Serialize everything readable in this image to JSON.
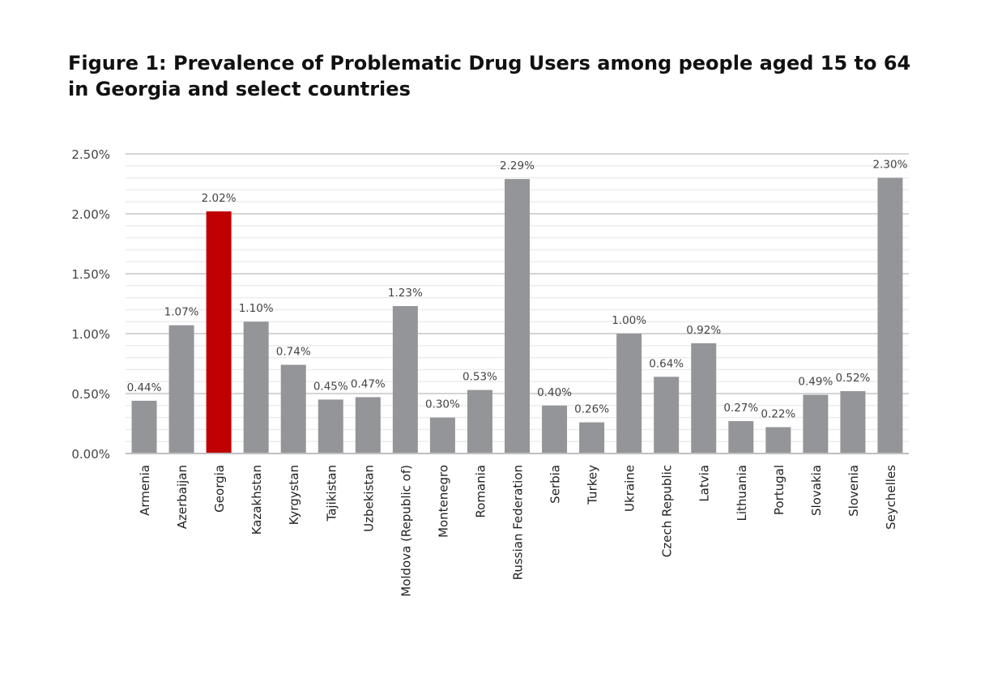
{
  "chart_data": {
    "type": "bar",
    "title_line1": "Figure 1: Prevalence of Problematic Drug Users among people aged 15 to 64",
    "title_line2": "in Georgia and select countries",
    "categories": [
      "Armenia",
      "Azerbaijan",
      "Georgia",
      "Kazakhstan",
      "Kyrgystan",
      "Tajikistan",
      "Uzbekistan",
      "Moldova (Republic of)",
      "Montenegro",
      "Romania",
      "Russian Federation",
      "Serbia",
      "Turkey",
      "Ukraine",
      "Czech Republic",
      "Latvia",
      "Lithuania",
      "Portugal",
      "Slovakia",
      "Slovenia",
      "Seychelles"
    ],
    "values": [
      0.44,
      1.07,
      2.02,
      1.1,
      0.74,
      0.45,
      0.47,
      1.23,
      0.3,
      0.53,
      2.29,
      0.4,
      0.26,
      1.0,
      0.64,
      0.92,
      0.27,
      0.22,
      0.49,
      0.52,
      2.3
    ],
    "value_unit": "%",
    "ylim": [
      0,
      2.5
    ],
    "yticks": [
      "0.00%",
      "0.50%",
      "1.00%",
      "1.50%",
      "2.00%",
      "2.50%"
    ],
    "grid": true,
    "colors": {
      "default": "#939598",
      "highlight": "#c00000",
      "highlight_category": "Georgia"
    }
  }
}
